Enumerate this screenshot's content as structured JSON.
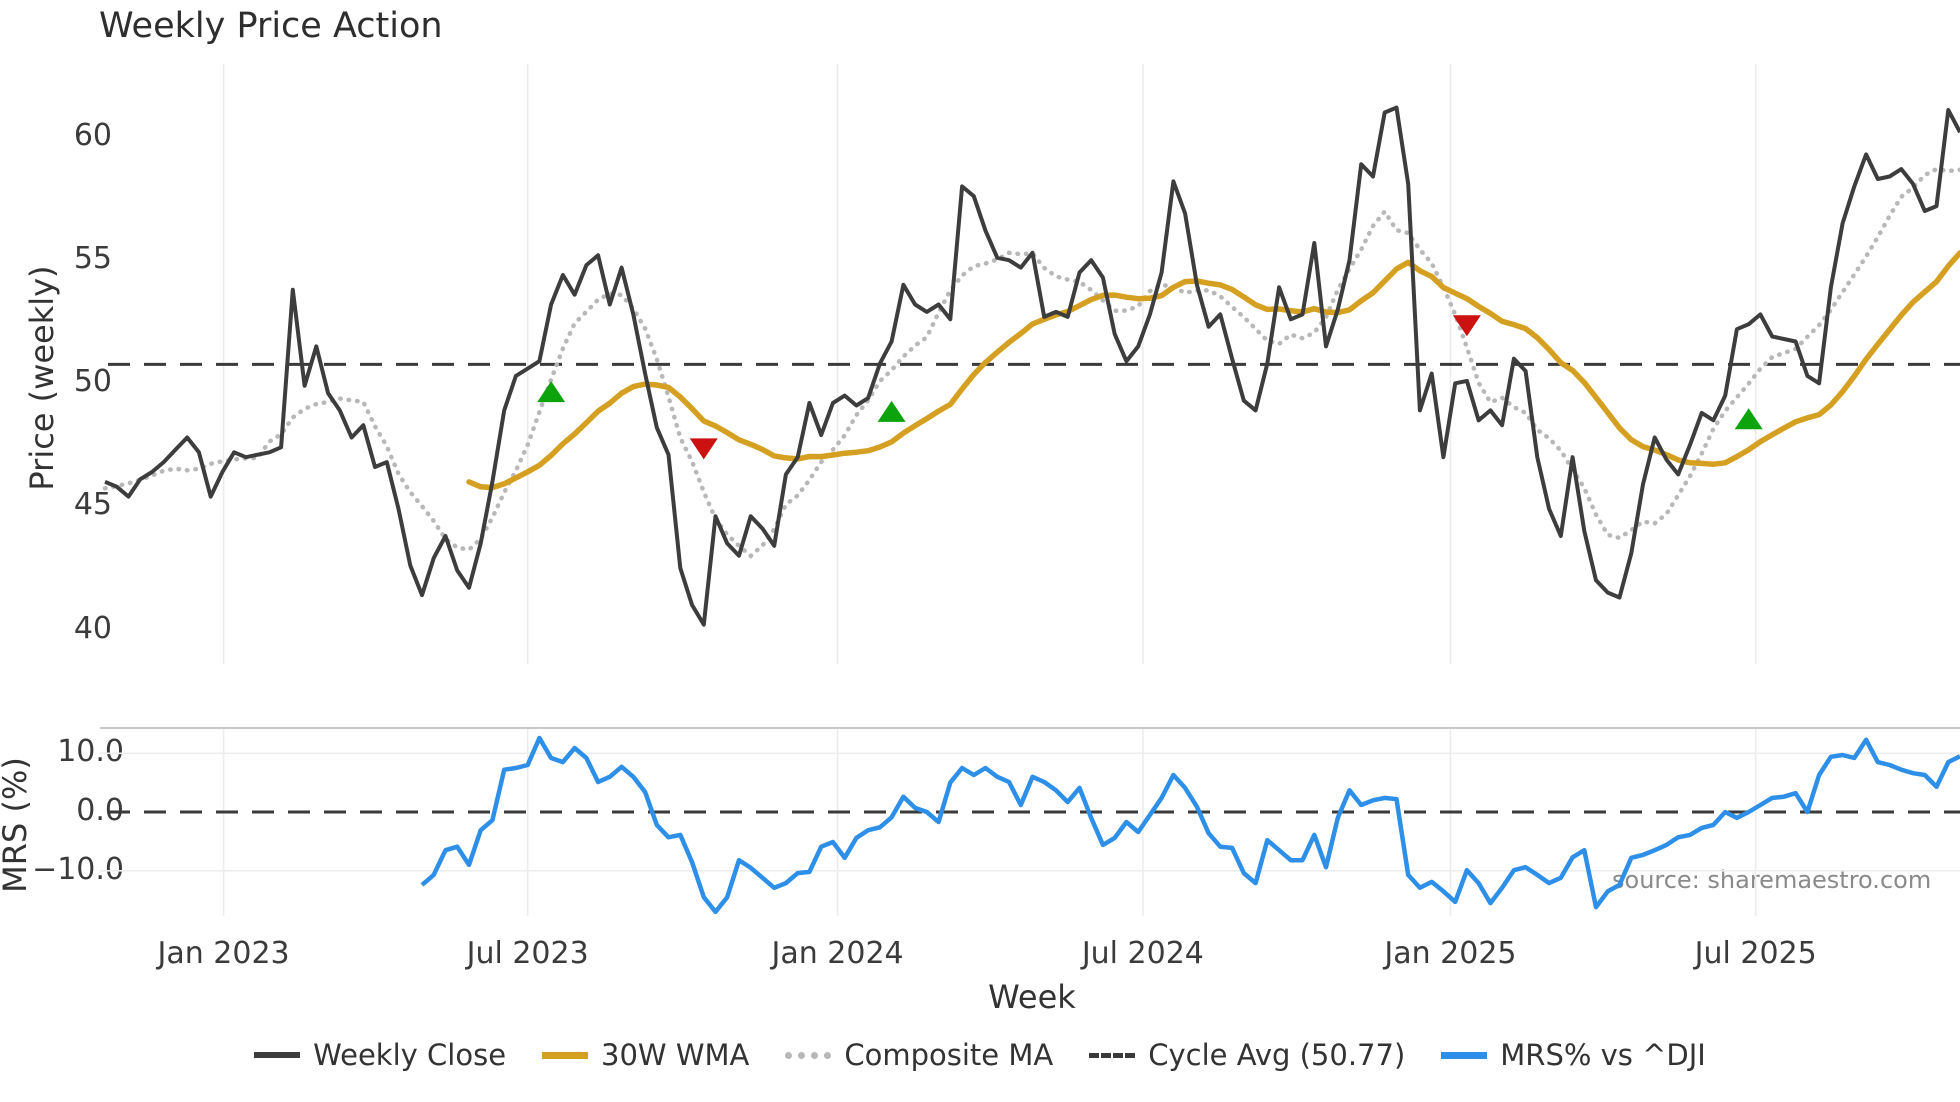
{
  "title": "Weekly Price Action",
  "source_note": "source: sharemaestro.com",
  "price_panel": {
    "ylabel": "Price (weekly)",
    "yticks": [
      {
        "label": "60",
        "value": 60
      },
      {
        "label": "55",
        "value": 55
      },
      {
        "label": "50",
        "value": 50
      },
      {
        "label": "45",
        "value": 45
      },
      {
        "label": "40",
        "value": 40
      }
    ]
  },
  "mrs_panel": {
    "ylabel": "MRS (%)",
    "yticks": [
      {
        "label": "10.0",
        "value": 10
      },
      {
        "label": "0.0",
        "value": 0
      },
      {
        "label": "−10.0",
        "value": -10
      }
    ]
  },
  "xaxis": {
    "label": "Week",
    "ticks": [
      {
        "label": "Jan 2023",
        "week": 10.1
      },
      {
        "label": "Jul 2023",
        "week": 36.0
      },
      {
        "label": "Jan 2024",
        "week": 62.4
      },
      {
        "label": "Jul 2024",
        "week": 88.4
      },
      {
        "label": "Jan 2025",
        "week": 114.6
      },
      {
        "label": "Jul 2025",
        "week": 140.6
      }
    ]
  },
  "legend": {
    "items": [
      {
        "label": "Weekly Close"
      },
      {
        "label": "30W WMA"
      },
      {
        "label": "Composite MA"
      },
      {
        "label": "Cycle Avg (50.77)"
      },
      {
        "label": "MRS% vs ^DJI"
      }
    ]
  },
  "chart_data": {
    "type": "line",
    "x_axis": {
      "unit": "week_index",
      "xlim_weeks": [
        0,
        158
      ],
      "tick_weeks": [
        10.1,
        36.0,
        62.4,
        88.4,
        114.6,
        140.6
      ]
    },
    "panels": [
      {
        "id": "price",
        "ylabel": "Price (weekly)",
        "ylim": [
          38.6,
          62.97
        ],
        "grid": "vertical-only"
      },
      {
        "id": "mrs",
        "ylabel": "MRS (%)",
        "ylim": [
          -17.7,
          14.3
        ],
        "grid": "vertical+horizontal"
      }
    ],
    "cycle_avg": 50.77,
    "series": [
      {
        "name": "Weekly Close",
        "panel": "price",
        "color": "#3d3d3d",
        "style": "solid",
        "start_week": 0,
        "values": [
          46.0,
          45.8,
          45.4,
          46.1,
          46.4,
          46.8,
          47.3,
          47.8,
          47.2,
          45.4,
          46.4,
          47.2,
          47.0,
          47.1,
          47.2,
          47.4,
          53.8,
          49.9,
          51.5,
          49.6,
          48.9,
          47.8,
          48.3,
          46.6,
          46.8,
          44.9,
          42.6,
          41.4,
          42.9,
          43.8,
          42.4,
          41.7,
          43.5,
          46.0,
          48.9,
          50.3,
          50.6,
          50.9,
          53.2,
          54.4,
          53.6,
          54.8,
          55.2,
          53.2,
          54.7,
          52.8,
          50.4,
          48.2,
          47.1,
          42.5,
          41.0,
          40.2,
          44.6,
          43.5,
          43.0,
          44.6,
          44.1,
          43.4,
          46.3,
          47.0,
          49.2,
          47.9,
          49.2,
          49.5,
          49.1,
          49.4,
          50.8,
          51.7,
          54.0,
          53.2,
          52.9,
          53.2,
          52.6,
          58.0,
          57.6,
          56.2,
          55.1,
          55.0,
          54.7,
          55.3,
          52.7,
          52.9,
          52.7,
          54.5,
          55.0,
          54.3,
          52.0,
          50.9,
          51.5,
          52.8,
          54.5,
          58.2,
          56.9,
          54.0,
          52.3,
          52.8,
          51.0,
          49.3,
          48.9,
          50.8,
          53.9,
          52.6,
          52.8,
          55.7,
          51.5,
          53.0,
          55.0,
          58.9,
          58.4,
          61.0,
          61.2,
          58.1,
          48.9,
          50.4,
          47.0,
          50.0,
          50.1,
          48.5,
          48.9,
          48.3,
          51.0,
          50.5,
          47.0,
          44.9,
          43.8,
          47.0,
          44.0,
          42.0,
          41.5,
          41.3,
          43.1,
          45.9,
          47.8,
          46.9,
          46.3,
          47.5,
          48.8,
          48.5,
          49.5,
          52.2,
          52.4,
          52.8,
          51.9,
          51.8,
          51.7,
          50.3,
          50.0,
          53.9,
          56.5,
          58.0,
          59.3,
          58.3,
          58.4,
          58.7,
          58.1,
          57.0,
          57.2,
          61.1,
          60.2
        ]
      },
      {
        "name": "30W WMA",
        "panel": "price",
        "color": "#d5a021",
        "style": "solid",
        "derived_from": "Weekly Close",
        "method": "30-week linear-weighted moving average",
        "plot_from_week": 31
      },
      {
        "name": "Composite MA",
        "panel": "price",
        "color": "#b8b8b8",
        "style": "dotted",
        "derived_from": "Weekly Close",
        "method": "9-week smoothed average with 2-week lag"
      },
      {
        "name": "Cycle Avg (50.77)",
        "panel": "price",
        "color": "#3a3a3a",
        "style": "dashed",
        "constant": 50.77
      },
      {
        "name": "MRS% vs ^DJI",
        "panel": "mrs",
        "color": "#2e8fe8",
        "style": "solid",
        "start_week": 27,
        "values": [
          -12.4,
          -10.7,
          -6.5,
          -5.9,
          -9.0,
          -3.1,
          -1.4,
          7.2,
          7.5,
          8.0,
          12.6,
          9.2,
          8.5,
          10.9,
          9.2,
          5.1,
          6.0,
          7.7,
          6.0,
          3.4,
          -2.2,
          -4.3,
          -3.9,
          -8.5,
          -14.5,
          -17.0,
          -14.5,
          -8.2,
          -9.5,
          -11.2,
          -12.9,
          -12.1,
          -10.4,
          -10.2,
          -5.9,
          -5.1,
          -7.8,
          -4.4,
          -3.1,
          -2.6,
          -0.9,
          2.6,
          0.7,
          0.0,
          -1.7,
          5.0,
          7.5,
          6.3,
          7.5,
          6.0,
          5.1,
          1.2,
          6.0,
          5.1,
          3.7,
          1.7,
          4.1,
          -1.0,
          -5.6,
          -4.4,
          -1.7,
          -3.4,
          -0.5,
          2.4,
          6.3,
          4.1,
          0.9,
          -3.6,
          -5.9,
          -6.1,
          -10.4,
          -12.1,
          -4.8,
          -6.5,
          -8.2,
          -8.2,
          -3.9,
          -9.4,
          -1.0,
          3.7,
          1.2,
          2.0,
          2.4,
          2.2,
          -10.7,
          -12.9,
          -11.9,
          -13.5,
          -15.3,
          -9.9,
          -12.1,
          -15.5,
          -12.9,
          -9.9,
          -9.4,
          -10.7,
          -12.1,
          -11.2,
          -7.7,
          -6.5,
          -16.2,
          -13.5,
          -12.4,
          -7.8,
          -7.3,
          -6.5,
          -5.6,
          -4.3,
          -3.9,
          -2.7,
          -2.2,
          0.0,
          -1.0,
          0.0,
          1.2,
          2.4,
          2.6,
          3.2,
          0.0,
          6.3,
          9.4,
          9.7,
          9.2,
          12.3,
          8.5,
          8.0,
          7.2,
          6.6,
          6.3,
          4.3,
          8.5,
          9.5
        ]
      }
    ],
    "signals": {
      "buy_color": "#0ca30c",
      "sell_color": "#cc1111",
      "buy_markers": [
        {
          "week": 38,
          "price": 49.6
        },
        {
          "week": 67,
          "price": 48.8
        },
        {
          "week": 140,
          "price": 48.5
        }
      ],
      "sell_markers": [
        {
          "week": 51,
          "price": 47.4
        },
        {
          "week": 116,
          "price": 52.4
        }
      ]
    }
  }
}
